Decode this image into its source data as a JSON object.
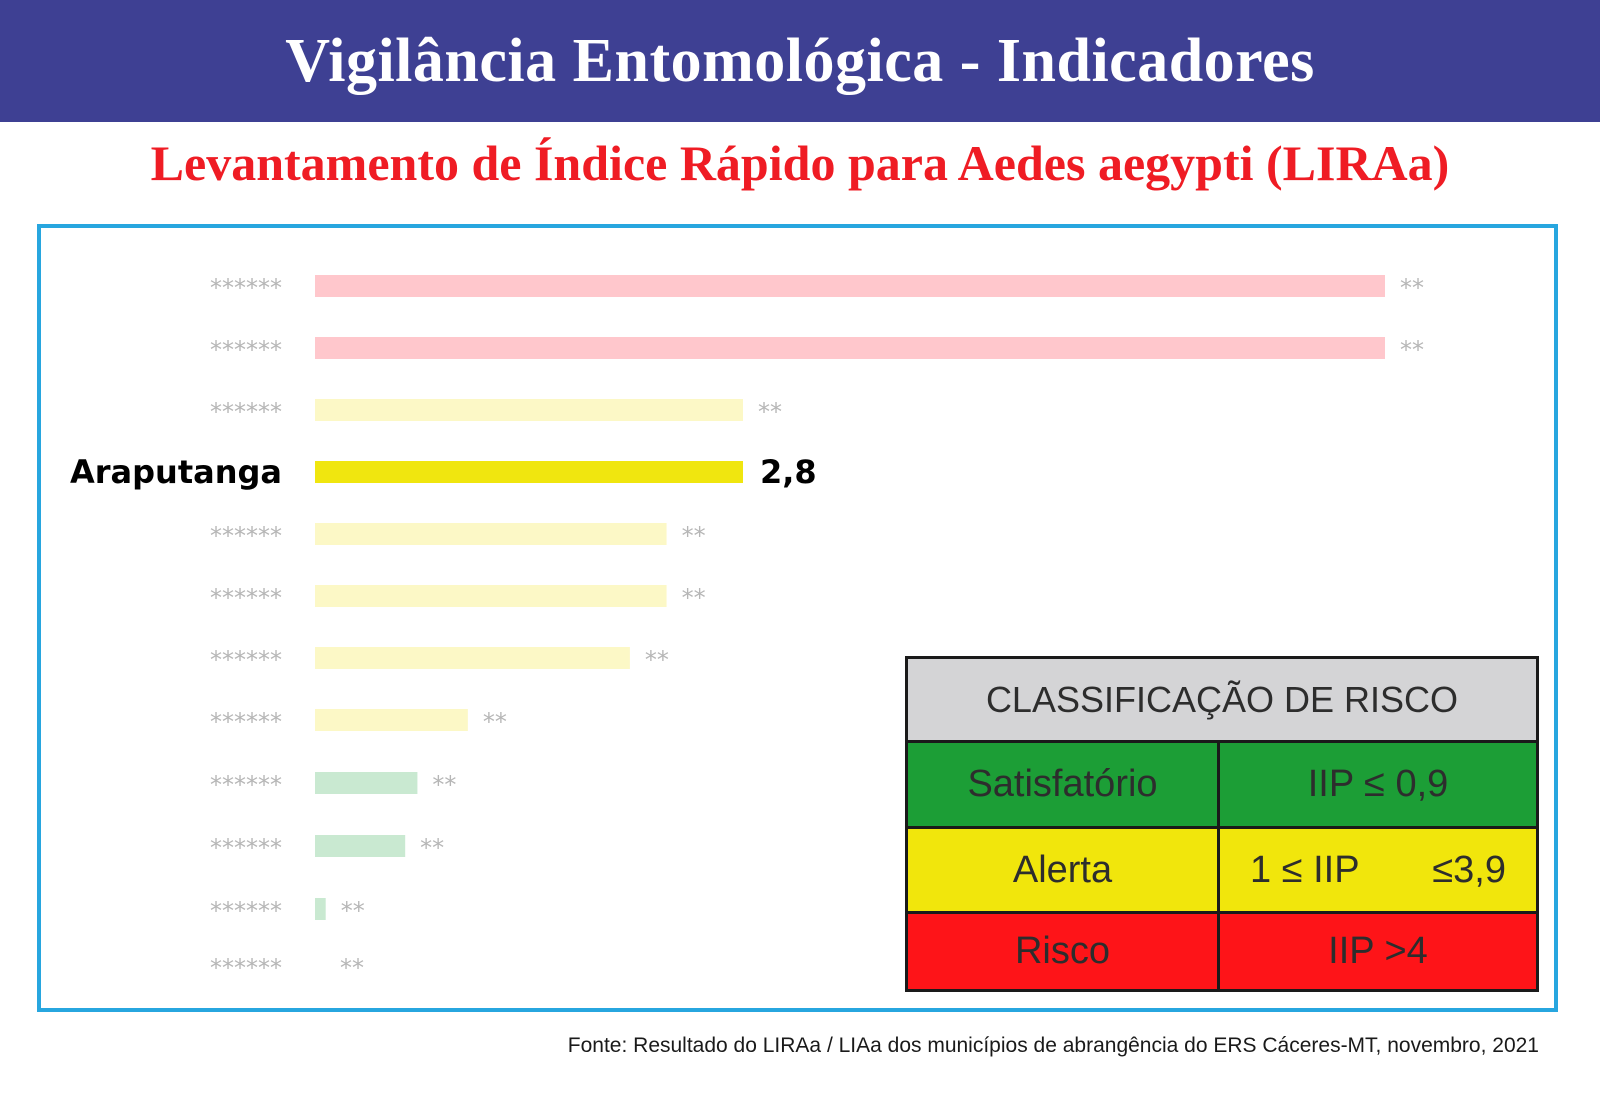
{
  "header": {
    "title": "Vigilância Entomológica - Indicadores"
  },
  "subtitle": "Levantamento de Índice Rápido para Aedes aegypti (LIRAa)",
  "chart_data": {
    "type": "bar",
    "orientation": "horizontal",
    "xlim": [
      0,
      7
    ],
    "rows": [
      {
        "label": "******",
        "value": 7.0,
        "value_label": "**",
        "class": "risco",
        "highlight": false
      },
      {
        "label": "******",
        "value": 7.0,
        "value_label": "**",
        "class": "risco",
        "highlight": false
      },
      {
        "label": "******",
        "value": 2.8,
        "value_label": "**",
        "class": "alerta",
        "highlight": false
      },
      {
        "label": "Araputanga",
        "value": 2.8,
        "value_label": "2,8",
        "class": "alerta",
        "highlight": true
      },
      {
        "label": "******",
        "value": 2.3,
        "value_label": "**",
        "class": "alerta",
        "highlight": false
      },
      {
        "label": "******",
        "value": 2.3,
        "value_label": "**",
        "class": "alerta",
        "highlight": false
      },
      {
        "label": "******",
        "value": 2.06,
        "value_label": "**",
        "class": "alerta",
        "highlight": false
      },
      {
        "label": "******",
        "value": 1.0,
        "value_label": "**",
        "class": "alerta",
        "highlight": false
      },
      {
        "label": "******",
        "value": 0.67,
        "value_label": "**",
        "class": "satisfatorio",
        "highlight": false
      },
      {
        "label": "******",
        "value": 0.59,
        "value_label": "**",
        "class": "satisfatorio",
        "highlight": false
      },
      {
        "label": "******",
        "value": 0.07,
        "value_label": "**",
        "class": "satisfatorio",
        "highlight": false
      },
      {
        "label": "******",
        "value": 0.0,
        "value_label": "**",
        "class": "satisfatorio",
        "highlight": false
      }
    ],
    "colors": {
      "risco_faded": "#ffc7cc",
      "alerta_faded": "#fcf8c6",
      "alerta_highlight": "#f0e60f",
      "satisfatorio_faded": "#c9e9d1",
      "faded_text": "#b6b6b6",
      "highlight_text": "#000000"
    }
  },
  "risk_table": {
    "title": "CLASSIFICAÇÃO DE RISCO",
    "rows": [
      {
        "name": "Satisfatório",
        "rule": "IIP ≤ 0,9",
        "color": "#1c9e36"
      },
      {
        "name": "Alerta",
        "rule_a": "1 ≤ IIP",
        "rule_b": "≤3,9",
        "color": "#f1e60c"
      },
      {
        "name": "Risco",
        "rule": "IIP >4",
        "color": "#fe1418"
      }
    ]
  },
  "source": "Fonte: Resultado do LIRAa / LIAa dos municípios de abrangência do ERS Cáceres-MT, novembro, 2021"
}
